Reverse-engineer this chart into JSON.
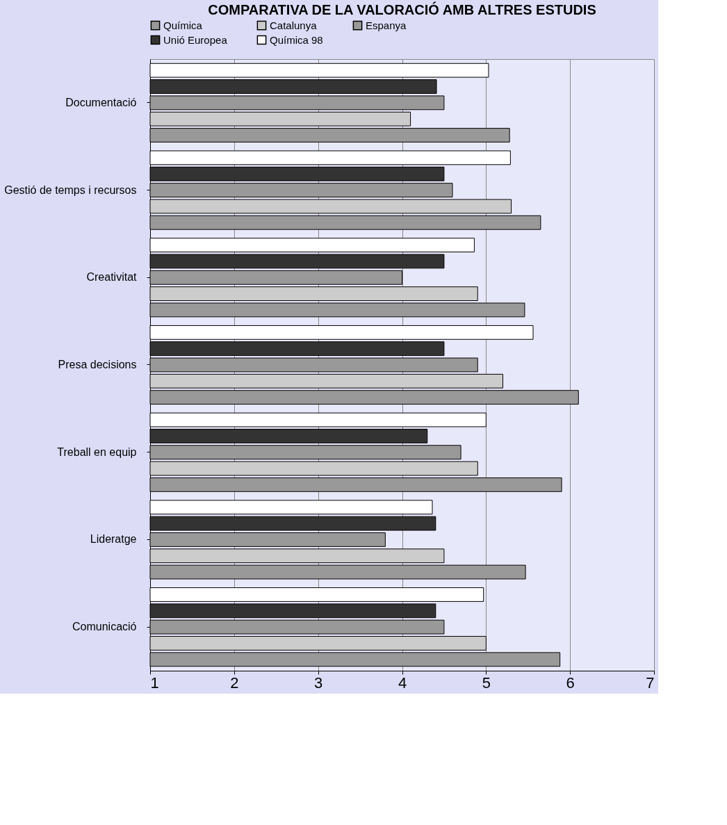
{
  "chart_data": {
    "type": "bar",
    "orientation": "horizontal",
    "title": "COMPARATIVA DE LA VALORACIÓ AMB ALTRES ESTUDIS",
    "categories": [
      "Documentació",
      "Gestió de temps i recursos",
      "Creativitat",
      "Presa decisions",
      "Treball en equip",
      "Lideratge",
      "Comunicació"
    ],
    "series": [
      {
        "name": "Química",
        "color": "#999999",
        "values": [
          5.28,
          5.65,
          5.46,
          6.1,
          5.9,
          5.47,
          5.88
        ]
      },
      {
        "name": "Catalunya",
        "color": "#cccccc",
        "values": [
          4.1,
          5.3,
          4.9,
          5.2,
          4.9,
          4.5,
          5.0
        ]
      },
      {
        "name": "Espanya",
        "color": "#999999",
        "values": [
          4.5,
          4.6,
          4.0,
          4.9,
          4.7,
          3.8,
          4.5
        ]
      },
      {
        "name": "Unió Europea",
        "color": "#333333",
        "values": [
          4.41,
          4.5,
          4.5,
          4.5,
          4.3,
          4.4,
          4.4
        ]
      },
      {
        "name": "Química 98",
        "color": "#ffffff",
        "values": [
          5.03,
          5.29,
          4.86,
          5.56,
          5.0,
          4.36,
          4.97
        ]
      }
    ],
    "xlim": [
      1,
      7
    ],
    "xticks": [
      1,
      2,
      3,
      4,
      5,
      6,
      7
    ],
    "grid": "x",
    "legend": "top"
  }
}
